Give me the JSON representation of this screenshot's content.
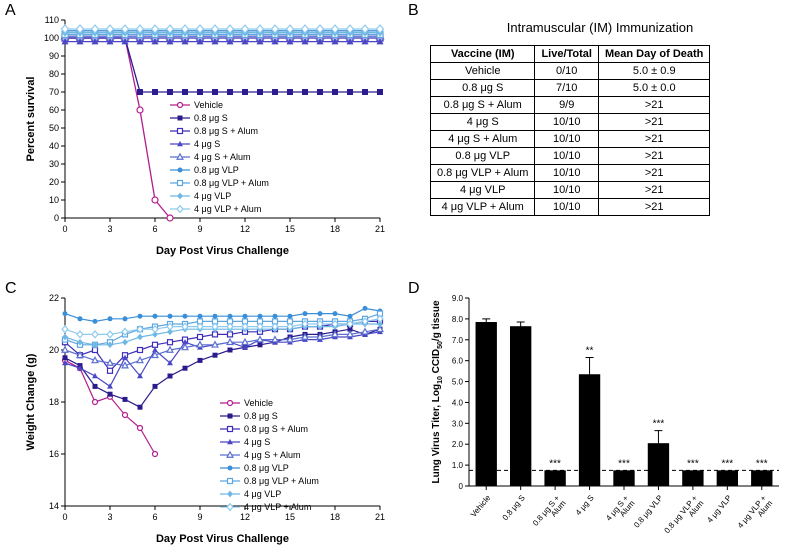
{
  "panelA": {
    "label": "A",
    "type": "line",
    "xlabel": "Day Post Virus Challenge",
    "ylabel": "Percent survival",
    "xlim": [
      0,
      21
    ],
    "ylim": [
      0,
      110
    ],
    "xticks": [
      0,
      3,
      6,
      9,
      12,
      15,
      18,
      21
    ],
    "yticks": [
      0,
      10,
      20,
      30,
      40,
      50,
      60,
      70,
      80,
      90,
      100,
      110
    ],
    "label_fontsize": 11,
    "tick_fontsize": 9,
    "line_width": 1.3,
    "marker_size": 6,
    "background_color": "#ffffff",
    "axis_color": "#000000",
    "series": [
      {
        "name": "Vehicle",
        "color": "#b21d8e",
        "marker": "circle-open",
        "x": [
          0,
          1,
          2,
          3,
          4,
          5,
          6,
          7
        ],
        "y": [
          100,
          100,
          100,
          100,
          100,
          60,
          10,
          0
        ]
      },
      {
        "name": "0.8 μg S",
        "color": "#2a1c8e",
        "marker": "square",
        "x": [
          0,
          1,
          2,
          3,
          4,
          5,
          6,
          7,
          8,
          9,
          10,
          11,
          12,
          13,
          14,
          15,
          16,
          17,
          18,
          19,
          20,
          21
        ],
        "y": [
          100,
          100,
          100,
          100,
          100,
          70,
          70,
          70,
          70,
          70,
          70,
          70,
          70,
          70,
          70,
          70,
          70,
          70,
          70,
          70,
          70,
          70
        ]
      },
      {
        "name": "0.8 μg S + Alum",
        "color": "#3f2fb8",
        "marker": "square-open",
        "x": [
          0,
          1,
          2,
          3,
          4,
          5,
          6,
          7,
          8,
          9,
          10,
          11,
          12,
          13,
          14,
          15,
          16,
          17,
          18,
          19,
          20,
          21
        ],
        "y": [
          100,
          100,
          100,
          100,
          100,
          100,
          100,
          100,
          100,
          100,
          100,
          100,
          100,
          100,
          100,
          100,
          100,
          100,
          100,
          100,
          100,
          100
        ]
      },
      {
        "name": "4 μg S",
        "color": "#4a46c4",
        "marker": "triangle",
        "x": [
          0,
          1,
          2,
          3,
          4,
          5,
          6,
          7,
          8,
          9,
          10,
          11,
          12,
          13,
          14,
          15,
          16,
          17,
          18,
          19,
          20,
          21
        ],
        "y": [
          98,
          98,
          98,
          98,
          98,
          98,
          98,
          98,
          98,
          98,
          98,
          98,
          98,
          98,
          98,
          98,
          98,
          98,
          98,
          98,
          98,
          98
        ]
      },
      {
        "name": "4 μg S + Alum",
        "color": "#5a6fd0",
        "marker": "triangle-open",
        "x": [
          0,
          1,
          2,
          3,
          4,
          5,
          6,
          7,
          8,
          9,
          10,
          11,
          12,
          13,
          14,
          15,
          16,
          17,
          18,
          19,
          20,
          21
        ],
        "y": [
          101,
          101,
          101,
          101,
          101,
          101,
          101,
          101,
          101,
          101,
          101,
          101,
          101,
          101,
          101,
          101,
          101,
          101,
          101,
          101,
          101,
          101
        ]
      },
      {
        "name": "0.8 μg VLP",
        "color": "#3a8fd8",
        "marker": "circle",
        "x": [
          0,
          1,
          2,
          3,
          4,
          5,
          6,
          7,
          8,
          9,
          10,
          11,
          12,
          13,
          14,
          15,
          16,
          17,
          18,
          19,
          20,
          21
        ],
        "y": [
          104,
          104,
          104,
          104,
          104,
          104,
          104,
          104,
          104,
          104,
          104,
          104,
          104,
          104,
          104,
          104,
          104,
          104,
          104,
          104,
          104,
          104
        ]
      },
      {
        "name": "0.8 μg VLP + Alum",
        "color": "#5fa6de",
        "marker": "square-open",
        "x": [
          0,
          1,
          2,
          3,
          4,
          5,
          6,
          7,
          8,
          9,
          10,
          11,
          12,
          13,
          14,
          15,
          16,
          17,
          18,
          19,
          20,
          21
        ],
        "y": [
          102,
          102,
          102,
          102,
          102,
          102,
          102,
          102,
          102,
          102,
          102,
          102,
          102,
          102,
          102,
          102,
          102,
          102,
          102,
          102,
          102,
          102
        ]
      },
      {
        "name": "4 μg VLP",
        "color": "#6fb8e4",
        "marker": "diamond",
        "x": [
          0,
          1,
          2,
          3,
          4,
          5,
          6,
          7,
          8,
          9,
          10,
          11,
          12,
          13,
          14,
          15,
          16,
          17,
          18,
          19,
          20,
          21
        ],
        "y": [
          103,
          103,
          103,
          103,
          103,
          103,
          103,
          103,
          103,
          103,
          103,
          103,
          103,
          103,
          103,
          103,
          103,
          103,
          103,
          103,
          103,
          103
        ]
      },
      {
        "name": "4 μg VLP + Alum",
        "color": "#8ecaee",
        "marker": "diamond-open",
        "x": [
          0,
          1,
          2,
          3,
          4,
          5,
          6,
          7,
          8,
          9,
          10,
          11,
          12,
          13,
          14,
          15,
          16,
          17,
          18,
          19,
          20,
          21
        ],
        "y": [
          105,
          105,
          105,
          105,
          105,
          105,
          105,
          105,
          105,
          105,
          105,
          105,
          105,
          105,
          105,
          105,
          105,
          105,
          105,
          105,
          105,
          105
        ]
      }
    ]
  },
  "panelB": {
    "label": "B",
    "title": "Intramuscular (IM) Immunization",
    "title_fontsize": 13,
    "columns": [
      "Vaccine (IM)",
      "Live/Total",
      "Mean Day of Death"
    ],
    "rows": [
      [
        "Vehicle",
        "0/10",
        "5.0 ± 0.9"
      ],
      [
        "0.8 μg S",
        "7/10",
        "5.0 ± 0.0"
      ],
      [
        "0.8 μg S + Alum",
        "9/9",
        ">21"
      ],
      [
        "4 μg S",
        "10/10",
        ">21"
      ],
      [
        "4 μg S + Alum",
        "10/10",
        ">21"
      ],
      [
        "0.8 μg VLP",
        "10/10",
        ">21"
      ],
      [
        "0.8 μg VLP + Alum",
        "10/10",
        ">21"
      ],
      [
        "4 μg VLP",
        "10/10",
        ">21"
      ],
      [
        "4 μg VLP + Alum",
        "10/10",
        ">21"
      ]
    ]
  },
  "panelC": {
    "label": "C",
    "type": "line",
    "xlabel": "Day Post Virus Challenge",
    "ylabel": "Weight Change (g)",
    "xlim": [
      0,
      21
    ],
    "ylim": [
      14,
      22
    ],
    "xticks": [
      0,
      3,
      6,
      9,
      12,
      15,
      18,
      21
    ],
    "yticks": [
      14,
      16,
      18,
      20,
      22
    ],
    "label_fontsize": 11,
    "tick_fontsize": 9,
    "line_width": 1.2,
    "marker_size": 5,
    "background_color": "#ffffff",
    "axis_color": "#000000",
    "series": [
      {
        "name": "Vehicle",
        "color": "#b21d8e",
        "marker": "circle-open",
        "x": [
          0,
          1,
          2,
          3,
          4,
          5,
          6
        ],
        "y": [
          19.6,
          19.3,
          18.0,
          18.2,
          17.5,
          17.0,
          16.0
        ]
      },
      {
        "name": "0.8 μg S",
        "color": "#2a1c8e",
        "marker": "square",
        "x": [
          0,
          1,
          2,
          3,
          4,
          5,
          6,
          7,
          8,
          9,
          10,
          11,
          12,
          13,
          14,
          15,
          16,
          17,
          18,
          19,
          20,
          21
        ],
        "y": [
          19.7,
          19.4,
          18.6,
          18.3,
          18.1,
          17.8,
          18.6,
          19.0,
          19.3,
          19.6,
          19.8,
          20.0,
          20.1,
          20.2,
          20.3,
          20.5,
          20.6,
          20.6,
          20.7,
          20.8,
          20.6,
          20.8
        ]
      },
      {
        "name": "0.8 μg S + Alum",
        "color": "#3f2fb8",
        "marker": "square-open",
        "x": [
          0,
          1,
          2,
          3,
          4,
          5,
          6,
          7,
          8,
          9,
          10,
          11,
          12,
          13,
          14,
          15,
          16,
          17,
          18,
          19,
          20,
          21
        ],
        "y": [
          20.3,
          19.8,
          20.0,
          19.2,
          19.8,
          20.0,
          20.2,
          20.3,
          20.4,
          20.5,
          20.6,
          20.6,
          20.7,
          20.7,
          20.8,
          20.8,
          20.9,
          20.9,
          21.0,
          21.0,
          21.1,
          21.1
        ]
      },
      {
        "name": "4 μg S",
        "color": "#4a46c4",
        "marker": "triangle",
        "x": [
          0,
          1,
          2,
          3,
          4,
          5,
          6,
          7,
          8,
          9,
          10,
          11,
          12,
          13,
          14,
          15,
          16,
          17,
          18,
          19,
          20,
          21
        ],
        "y": [
          19.5,
          19.3,
          19.0,
          18.6,
          19.7,
          19.0,
          20.0,
          19.5,
          20.3,
          20.1,
          20.2,
          20.3,
          20.1,
          20.4,
          20.3,
          20.3,
          20.4,
          20.4,
          20.5,
          20.5,
          20.6,
          20.7
        ]
      },
      {
        "name": "4 μg S + Alum",
        "color": "#5a6fd0",
        "marker": "triangle-open",
        "x": [
          0,
          1,
          2,
          3,
          4,
          5,
          6,
          7,
          8,
          9,
          10,
          11,
          12,
          13,
          14,
          15,
          16,
          17,
          18,
          19,
          20,
          21
        ],
        "y": [
          20.0,
          19.8,
          19.6,
          19.5,
          19.4,
          19.6,
          19.8,
          20.0,
          20.1,
          20.2,
          20.2,
          20.3,
          20.3,
          20.4,
          20.4,
          20.4,
          20.5,
          20.5,
          20.6,
          20.6,
          20.7,
          20.8
        ]
      },
      {
        "name": "0.8 μg VLP",
        "color": "#3a8fd8",
        "marker": "circle",
        "x": [
          0,
          1,
          2,
          3,
          4,
          5,
          6,
          7,
          8,
          9,
          10,
          11,
          12,
          13,
          14,
          15,
          16,
          17,
          18,
          19,
          20,
          21
        ],
        "y": [
          21.4,
          21.2,
          21.1,
          21.2,
          21.2,
          21.3,
          21.3,
          21.3,
          21.3,
          21.3,
          21.3,
          21.3,
          21.3,
          21.3,
          21.3,
          21.3,
          21.4,
          21.4,
          21.4,
          21.3,
          21.6,
          21.5
        ]
      },
      {
        "name": "0.8 μg VLP + Alum",
        "color": "#5fa6de",
        "marker": "square-open",
        "x": [
          0,
          1,
          2,
          3,
          4,
          5,
          6,
          7,
          8,
          9,
          10,
          11,
          12,
          13,
          14,
          15,
          16,
          17,
          18,
          19,
          20,
          21
        ],
        "y": [
          20.4,
          20.2,
          20.2,
          20.3,
          20.6,
          20.8,
          20.9,
          21.0,
          21.0,
          21.1,
          21.1,
          21.1,
          21.1,
          21.1,
          21.1,
          21.1,
          21.1,
          21.1,
          21.1,
          21.1,
          21.2,
          21.4
        ]
      },
      {
        "name": "4 μg VLP",
        "color": "#6fb8e4",
        "marker": "diamond",
        "x": [
          0,
          1,
          2,
          3,
          4,
          5,
          6,
          7,
          8,
          9,
          10,
          11,
          12,
          13,
          14,
          15,
          16,
          17,
          18,
          19,
          20,
          21
        ],
        "y": [
          20.5,
          20.3,
          20.2,
          20.2,
          20.3,
          20.5,
          20.6,
          20.7,
          20.8,
          20.8,
          20.8,
          20.8,
          20.8,
          20.8,
          20.8,
          20.8,
          20.9,
          20.9,
          20.9,
          21.0,
          21.0,
          21.0
        ]
      },
      {
        "name": "4 μg VLP + Alum",
        "color": "#8ecaee",
        "marker": "diamond-open",
        "x": [
          0,
          1,
          2,
          3,
          4,
          5,
          6,
          7,
          8,
          9,
          10,
          11,
          12,
          13,
          14,
          15,
          16,
          17,
          18,
          19,
          20,
          21
        ],
        "y": [
          20.8,
          20.6,
          20.6,
          20.6,
          20.7,
          20.8,
          20.8,
          20.9,
          20.9,
          20.9,
          20.9,
          20.9,
          20.9,
          20.9,
          20.9,
          20.9,
          21.0,
          21.0,
          21.0,
          21.0,
          21.1,
          21.2
        ]
      }
    ]
  },
  "panelD": {
    "label": "D",
    "type": "bar",
    "ylabel_line1": "Lung Virus Titer, Log",
    "ylabel_sub": "10",
    "ylabel_line2": " CCID",
    "ylabel_sub2": "50",
    "ylabel_line3": "/g tissue",
    "xlim": [
      0,
      9
    ],
    "ylim": [
      0,
      9
    ],
    "yticks": [
      0,
      1,
      2,
      3,
      4,
      5,
      6,
      7,
      8,
      9
    ],
    "ytick_labels": [
      "0",
      "1.0",
      "2.0",
      "3.0",
      "4.0",
      "5.0",
      "6.0",
      "7.0",
      "8.0",
      "9.0"
    ],
    "bar_color": "#000000",
    "bar_width": 0.62,
    "label_fontsize": 10,
    "tick_fontsize": 8,
    "background_color": "#ffffff",
    "axis_color": "#000000",
    "baseline_y": 0.75,
    "baseline_dash": "4,3",
    "categories": [
      "Vehicle",
      "0.8 μg S",
      "0.8 μg S + Alum",
      "4 μg S",
      "4 μg S + Alum",
      "0.8 μg VLP",
      "0.8 μg VLP + Alum",
      "4 μg VLP",
      "4 μg VLP + Alum"
    ],
    "values": [
      7.85,
      7.65,
      0.75,
      5.35,
      0.75,
      2.05,
      0.75,
      0.75,
      0.75
    ],
    "error": [
      0.15,
      0.2,
      0.0,
      0.8,
      0.0,
      0.6,
      0.0,
      0.0,
      0.0
    ],
    "annotations": [
      "",
      "",
      "***",
      "**",
      "***",
      "***",
      "***",
      "***",
      "***"
    ]
  }
}
